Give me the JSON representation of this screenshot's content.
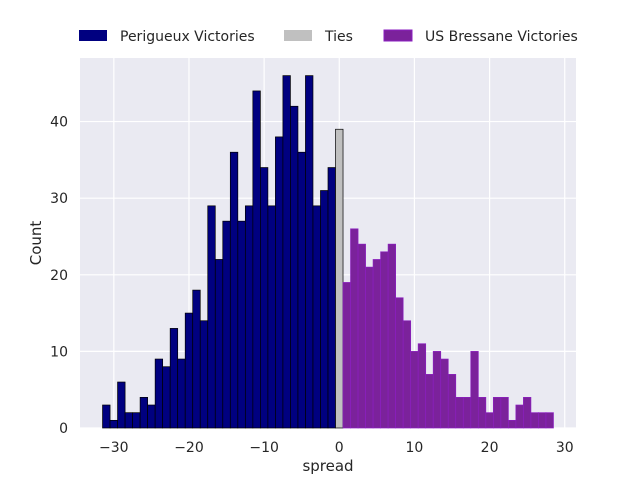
{
  "chart_data": {
    "type": "bar",
    "xlabel": "spread",
    "ylabel": "Count",
    "xlim": [
      -34.5,
      31.5
    ],
    "ylim": [
      0,
      48.3
    ],
    "grid": true,
    "legend_placement": "top",
    "x_ticks": [
      -30,
      -20,
      -10,
      0,
      10,
      20,
      30
    ],
    "x_tick_labels": [
      "−30",
      "−20",
      "−10",
      "0",
      "10",
      "20",
      "30"
    ],
    "y_ticks": [
      0,
      10,
      20,
      30,
      40
    ],
    "y_tick_labels": [
      "0",
      "10",
      "20",
      "30",
      "40"
    ],
    "series": [
      {
        "name": "Perigueux Victories",
        "color": "#000080",
        "edge": "#000000",
        "x": [
          -31,
          -30,
          -29,
          -28,
          -27,
          -26,
          -25,
          -24,
          -23,
          -22,
          -21,
          -20,
          -19,
          -18,
          -17,
          -16,
          -15,
          -14,
          -13,
          -12,
          -11,
          -10,
          -9,
          -8,
          -7,
          -6,
          -5,
          -4,
          -3,
          -2,
          -1
        ],
        "values": [
          3,
          1,
          6,
          2,
          2,
          4,
          3,
          9,
          8,
          13,
          9,
          15,
          18,
          14,
          29,
          22,
          27,
          36,
          27,
          29,
          44,
          34,
          29,
          38,
          46,
          42,
          36,
          46,
          29,
          31,
          34
        ]
      },
      {
        "name": "Ties",
        "color": "#c0c0c0",
        "edge": "#000000",
        "x": [
          0
        ],
        "values": [
          39
        ]
      },
      {
        "name": "US Bressane Victories",
        "color": "#7b229b",
        "edge": "#8b1fc0",
        "x": [
          1,
          2,
          3,
          4,
          5,
          6,
          7,
          8,
          9,
          10,
          11,
          12,
          13,
          14,
          15,
          16,
          17,
          18,
          19,
          20,
          21,
          22,
          23,
          24,
          25,
          26,
          27,
          28
        ],
        "values": [
          19,
          26,
          24,
          21,
          22,
          23,
          24,
          17,
          14,
          10,
          11,
          7,
          10,
          9,
          7,
          4,
          4,
          10,
          4,
          2,
          4,
          4,
          1,
          3,
          4,
          2,
          2,
          2
        ]
      }
    ]
  }
}
